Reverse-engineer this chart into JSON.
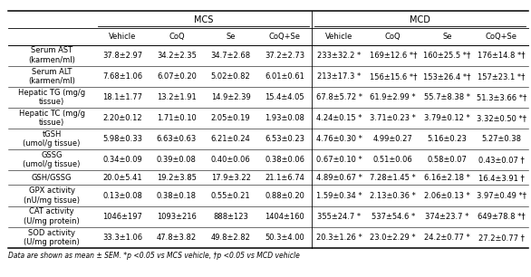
{
  "col_headers_mcs": [
    "Vehicle",
    "CoQ",
    "Se",
    "CoQ+Se"
  ],
  "col_headers_mcd": [
    "Vehicle",
    "CoQ",
    "Se",
    "CoQ+Se"
  ],
  "row_labels": [
    "Serum AST\n(karmen/ml)",
    "Serum ALT\n(karmen/ml)",
    "Hepatic TG (mg/g\ntissue)",
    "Hepatic TC (mg/g\ntissue)",
    "tGSH\n(umol/g tissue)",
    "GSSG\n(umol/g tissue)",
    "GSH/GSSG",
    "GPX activity\n(nU/mg tissue)",
    "CAT activity\n(U/mg protein)",
    "SOD activity\n(U/mg protein)"
  ],
  "data_mcs": [
    [
      "37.8±2.97",
      "34.2±2.35",
      "34.7±2.68",
      "37.2±2.73"
    ],
    [
      "7.68±1.06",
      "6.07±0.20",
      "5.02±0.82",
      "6.01±0.61"
    ],
    [
      "18.1±1.77",
      "13.2±1.91",
      "14.9±2.39",
      "15.4±4.05"
    ],
    [
      "2.20±0.12",
      "1.71±0.10",
      "2.05±0.19",
      "1.93±0.08"
    ],
    [
      "5.98±0.33",
      "6.63±0.63",
      "6.21±0.24",
      "6.53±0.23"
    ],
    [
      "0.34±0.09",
      "0.39±0.08",
      "0.40±0.06",
      "0.38±0.06"
    ],
    [
      "20.0±5.41",
      "19.2±3.85",
      "17.9±3.22",
      "21.1±6.74"
    ],
    [
      "0.13±0.08",
      "0.38±0.18",
      "0.55±0.21",
      "0.88±0.20"
    ],
    [
      "1046±197",
      "1093±216",
      "888±123",
      "1404±160"
    ],
    [
      "33.3±1.06",
      "47.8±3.82",
      "49.8±2.82",
      "50.3±4.00"
    ]
  ],
  "data_mcd": [
    [
      "233±32.2 *",
      "169±12.6 *†",
      "160±25.5 *†",
      "176±14.8 *†"
    ],
    [
      "213±17.3 *",
      "156±15.6 *†",
      "153±26.4 *†",
      "157±23.1 *†"
    ],
    [
      "67.8±5.72 *",
      "61.9±2.99 *",
      "55.7±8.38 *",
      "51.3±3.66 *†"
    ],
    [
      "4.24±0.15 *",
      "3.71±0.23 *",
      "3.79±0.12 *",
      "3.32±0.50 *†"
    ],
    [
      "4.76±0.30 *",
      "4.99±0.27",
      "5.16±0.23",
      "5.27±0.38"
    ],
    [
      "0.67±0.10 *",
      "0.51±0.06",
      "0.58±0.07",
      "0.43±0.07 †"
    ],
    [
      "4.89±0.67 *",
      "7.28±1.45 *",
      "6.16±2.18 *",
      "16.4±3.91 †"
    ],
    [
      "1.59±0.34 *",
      "2.13±0.36 *",
      "2.06±0.13 *",
      "3.97±0.49 *†"
    ],
    [
      "355±24.7 *",
      "537±54.6 *",
      "374±23.7 *",
      "649±78.8 *†"
    ],
    [
      "20.3±1.26 *",
      "23.0±2.29 *",
      "24.2±0.77 *",
      "27.2±0.77 †"
    ]
  ],
  "footnote": "Data are shown as mean ± SEM. *p <0.05 vs MCS vehicle, †p <0.05 vs MCD vehicle",
  "bg_color": "#ffffff",
  "text_color": "#000000",
  "label_font_size": 6.0,
  "data_font_size": 6.0,
  "header_font_size": 7.0,
  "footnote_font_size": 5.5
}
